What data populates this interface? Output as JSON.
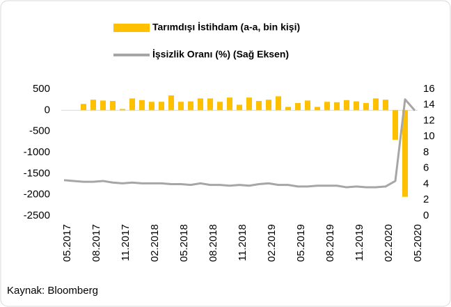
{
  "chart_data": {
    "type": "bar-line",
    "categories": [
      "05.2017",
      null,
      null,
      "08.2017",
      null,
      null,
      "11.2017",
      null,
      null,
      "02.2018",
      null,
      null,
      "05.2018",
      null,
      null,
      "08.2018",
      null,
      null,
      "11.2018",
      null,
      null,
      "02.2019",
      null,
      null,
      "05.2019",
      null,
      null,
      "08.2019",
      null,
      null,
      "11.2019",
      null,
      null,
      "02.2020",
      null,
      null,
      "05.2020"
    ],
    "series": [
      {
        "name": "Tarımdışı İstihdam (a-a, bin kişi)",
        "color": "#FFC000",
        "kind": "bar",
        "values": [
          null,
          null,
          150,
          250,
          230,
          220,
          30,
          280,
          240,
          200,
          200,
          350,
          200,
          210,
          280,
          280,
          200,
          300,
          130,
          300,
          220,
          250,
          330,
          80,
          170,
          230,
          80,
          200,
          190,
          240,
          210,
          170,
          280,
          250,
          -700,
          -2050,
          null
        ]
      },
      {
        "name": "İşsizlik Oranı (%) (Sağ Eksen)",
        "color": "#A6A6A6",
        "kind": "line",
        "axis": "y2",
        "values": [
          4.5,
          4.4,
          4.3,
          4.3,
          4.4,
          4.2,
          4.1,
          4.2,
          4.1,
          4.1,
          4.1,
          4.0,
          4.0,
          3.9,
          4.1,
          3.9,
          3.9,
          3.8,
          3.9,
          3.8,
          4.0,
          4.1,
          3.9,
          3.9,
          3.7,
          3.7,
          3.8,
          3.8,
          3.8,
          3.6,
          3.7,
          3.6,
          3.6,
          3.7,
          4.4,
          14.7,
          13.3
        ]
      }
    ],
    "ylim": [
      -2500,
      500
    ],
    "yticks": [
      500,
      0,
      -500,
      -1000,
      -1500,
      -2000,
      -2500
    ],
    "y2lim": [
      0,
      16
    ],
    "y2ticks": [
      16,
      14,
      12,
      10,
      8,
      6,
      4,
      2,
      0
    ],
    "source": "Kaynak: Bloomberg"
  }
}
